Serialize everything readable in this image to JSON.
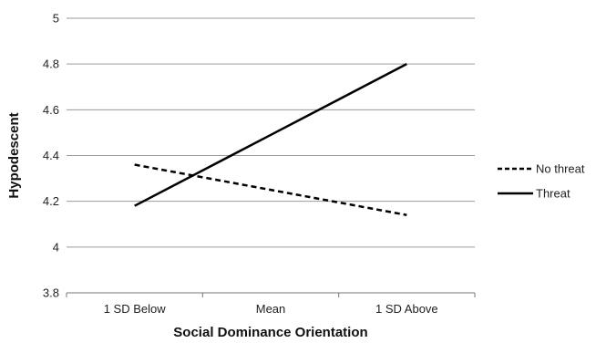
{
  "chart_data": {
    "type": "line",
    "categories": [
      "1 SD Below",
      "Mean",
      "1 SD Above"
    ],
    "series": [
      {
        "name": "No threat",
        "values": [
          4.36,
          4.25,
          4.14
        ],
        "style": "dashed",
        "color": "#000000"
      },
      {
        "name": "Threat",
        "values": [
          4.18,
          4.49,
          4.8
        ],
        "style": "solid",
        "color": "#000000"
      }
    ],
    "xlabel": "Social Dominance Orientation",
    "ylabel": "Hypodescent",
    "ylim": [
      3.8,
      5.0
    ],
    "yticks": [
      "3.8",
      "4",
      "4.2",
      "4.4",
      "4.6",
      "4.8",
      "5"
    ],
    "grid": true,
    "gridline_color": "#9a9a9a",
    "legend_position": "right"
  }
}
